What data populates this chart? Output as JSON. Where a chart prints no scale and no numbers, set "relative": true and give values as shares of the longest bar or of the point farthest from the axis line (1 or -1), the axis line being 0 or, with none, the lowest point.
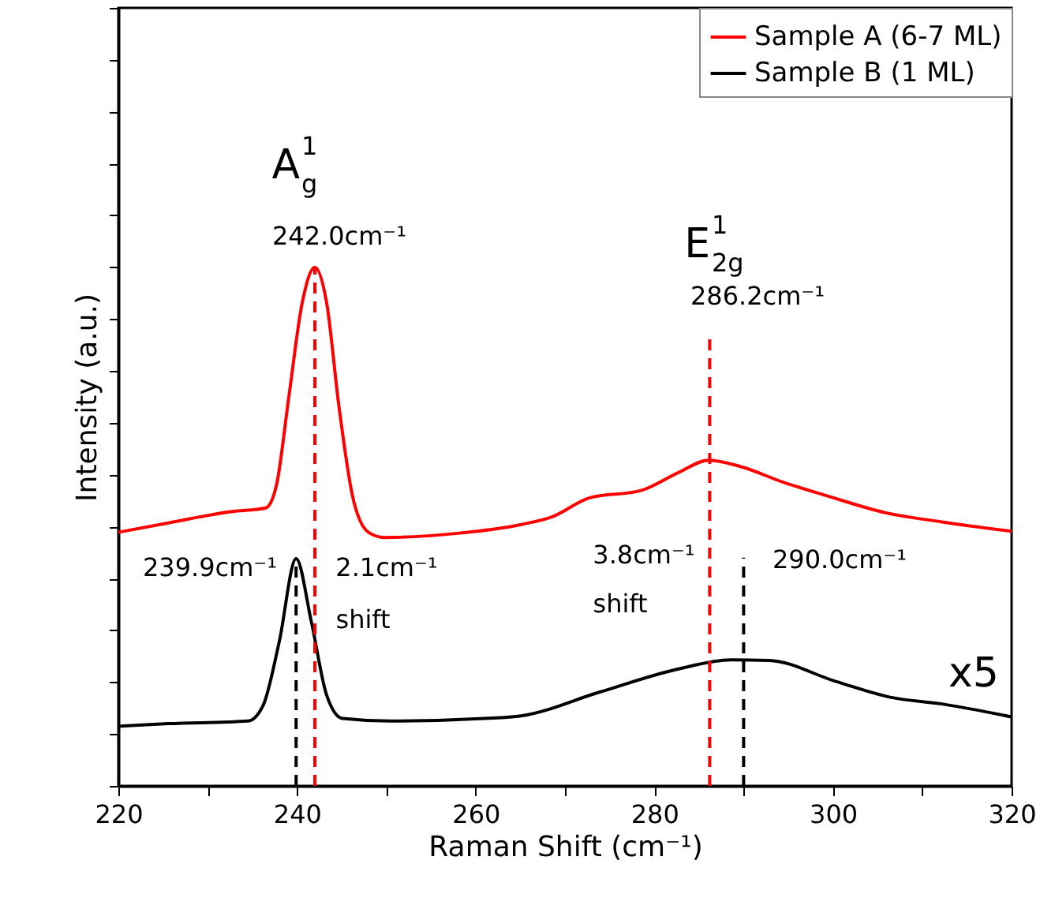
{
  "chart_data": {
    "type": "line",
    "relative": true,
    "xlabel": "Raman Shift (cm⁻¹)",
    "ylabel": "Intensity (a.u.)",
    "xlim": [
      220,
      320
    ],
    "xticks": [
      220,
      {
        "value": 230,
        "label": null
      },
      240,
      {
        "value": 250,
        "label": null
      },
      260,
      {
        "value": 270,
        "label": null
      },
      280,
      {
        "value": 290,
        "label": null
      },
      300,
      {
        "value": 310,
        "label": null
      },
      320
    ],
    "grid": false,
    "legend": "top right",
    "series": [
      {
        "name": "Sample A (6-7 ML)",
        "color": "#ff0000",
        "x": [
          220,
          225.6,
          232.7,
          236.5,
          237.7,
          239.1,
          240.6,
          242.0,
          243.3,
          244.7,
          246.2,
          248.0,
          249.8,
          258.0,
          265.1,
          268.6,
          272.7,
          278.6,
          282.8,
          286.1,
          289.8,
          294.5,
          299.2,
          305.8,
          312.2,
          320
        ],
        "values": [
          0.489,
          0.507,
          0.529,
          0.536,
          0.58,
          0.752,
          0.933,
          1.0,
          0.933,
          0.731,
          0.56,
          0.489,
          0.479,
          0.487,
          0.504,
          0.519,
          0.555,
          0.57,
          0.605,
          0.628,
          0.615,
          0.585,
          0.56,
          0.527,
          0.509,
          0.491
        ]
      },
      {
        "name": "Sample B (1 ML)",
        "color": "#000000",
        "x": [
          220,
          225.6,
          234.5,
          236.2,
          238.0,
          239.9,
          241.6,
          243.3,
          245.1,
          250.4,
          261.0,
          265.1,
          273.9,
          282.8,
          288.6,
          292.8,
          300.4,
          306.4,
          312.2,
          320
        ],
        "values": [
          0.115,
          0.12,
          0.125,
          0.155,
          0.277,
          0.438,
          0.317,
          0.176,
          0.13,
          0.125,
          0.13,
          0.135,
          0.181,
          0.226,
          0.243,
          0.242,
          0.201,
          0.171,
          0.158,
          0.133
        ]
      },
      {
        "color": "#ff0000",
        "line_style": "dashed",
        "x": [
          242.0,
          242.0
        ],
        "values": [
          0,
          1.0
        ]
      },
      {
        "color": "#ff0000",
        "line_style": "dashed",
        "x": [
          286.2,
          286.2
        ],
        "values": [
          0,
          0.867
        ]
      },
      {
        "color": "#000000",
        "line_style": "dashed",
        "x": [
          239.9,
          239.9
        ],
        "values": [
          0,
          0.438
        ]
      },
      {
        "color": "#000000",
        "line_style": "dashed",
        "x": [
          290.0,
          290.0
        ],
        "values": [
          0,
          0.44
        ]
      }
    ],
    "annotations": [
      "A$_{g}$$^{1}$",
      "242.0cm⁻¹",
      "E$_{2g}$$^{1}$",
      "286.2cm⁻¹",
      "239.9cm⁻¹",
      "2.1cm⁻¹",
      "shift",
      "3.8cm⁻¹",
      "shift",
      "290.0cm⁻¹",
      "x5"
    ]
  }
}
